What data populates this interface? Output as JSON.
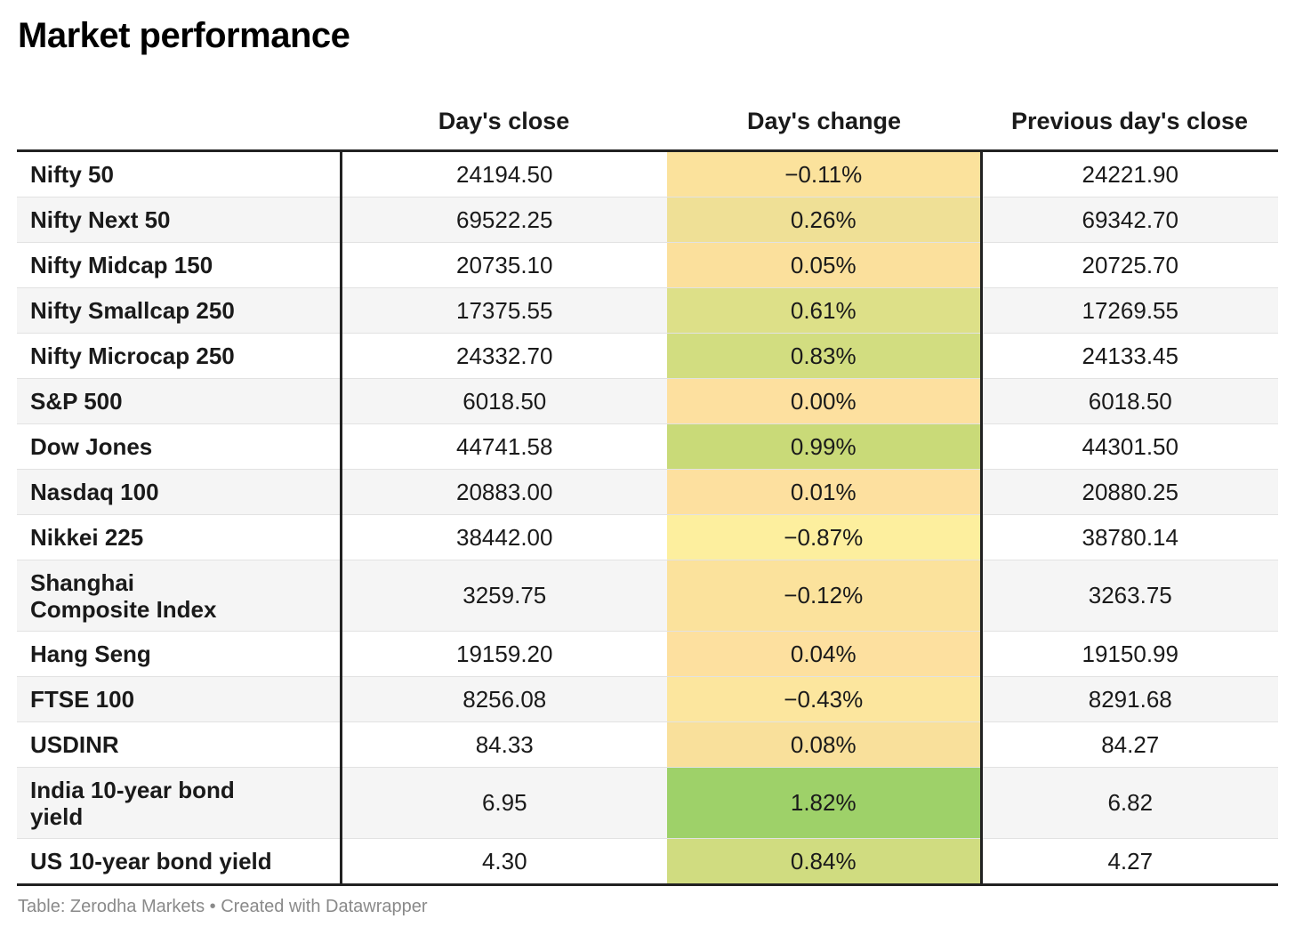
{
  "chart_data": {
    "type": "table",
    "title": "Market performance",
    "columns": [
      "",
      "Day's close",
      "Day's change",
      "Previous day's close"
    ],
    "rows": [
      {
        "name": "Nifty 50",
        "close": "24194.50",
        "change": "−0.11%",
        "prev": "24221.90",
        "change_color": "#fbe29c"
      },
      {
        "name": "Nifty Next 50",
        "close": "69522.25",
        "change": "0.26%",
        "prev": "69342.70",
        "change_color": "#efe096"
      },
      {
        "name": "Nifty Midcap 150",
        "close": "20735.10",
        "change": "0.05%",
        "prev": "20725.70",
        "change_color": "#fbe09c"
      },
      {
        "name": "Nifty Smallcap 250",
        "close": "17375.55",
        "change": "0.61%",
        "prev": "17269.55",
        "change_color": "#dde088"
      },
      {
        "name": "Nifty Microcap 250",
        "close": "24332.70",
        "change": "0.83%",
        "prev": "24133.45",
        "change_color": "#d2dd80"
      },
      {
        "name": "S&P 500",
        "close": "6018.50",
        "change": "0.00%",
        "prev": "6018.50",
        "change_color": "#fde09f"
      },
      {
        "name": "Dow Jones",
        "close": "44741.58",
        "change": "0.99%",
        "prev": "44301.50",
        "change_color": "#c9da78"
      },
      {
        "name": "Nasdaq 100",
        "close": "20883.00",
        "change": "0.01%",
        "prev": "20880.25",
        "change_color": "#fde09f"
      },
      {
        "name": "Nikkei 225",
        "close": "38442.00",
        "change": "−0.87%",
        "prev": "38780.14",
        "change_color": "#fdef9e"
      },
      {
        "name": "Shanghai Composite Index",
        "close": "3259.75",
        "change": "−0.12%",
        "prev": "3263.75",
        "change_color": "#fbe29c"
      },
      {
        "name": "Hang Seng",
        "close": "19159.20",
        "change": "0.04%",
        "prev": "19150.99",
        "change_color": "#fde09f"
      },
      {
        "name": "FTSE 100",
        "close": "8256.08",
        "change": "−0.43%",
        "prev": "8291.68",
        "change_color": "#fce69e"
      },
      {
        "name": "USDINR",
        "close": "84.33",
        "change": "0.08%",
        "prev": "84.27",
        "change_color": "#f9e09b"
      },
      {
        "name": "India 10-year bond yield",
        "close": "6.95",
        "change": "1.82%",
        "prev": "6.82",
        "change_color": "#9ed169"
      },
      {
        "name": "US 10-year bond yield",
        "close": "4.30",
        "change": "0.84%",
        "prev": "4.27",
        "change_color": "#d0dc80"
      }
    ],
    "source": "Table: Zerodha Markets • Created with Datawrapper"
  }
}
